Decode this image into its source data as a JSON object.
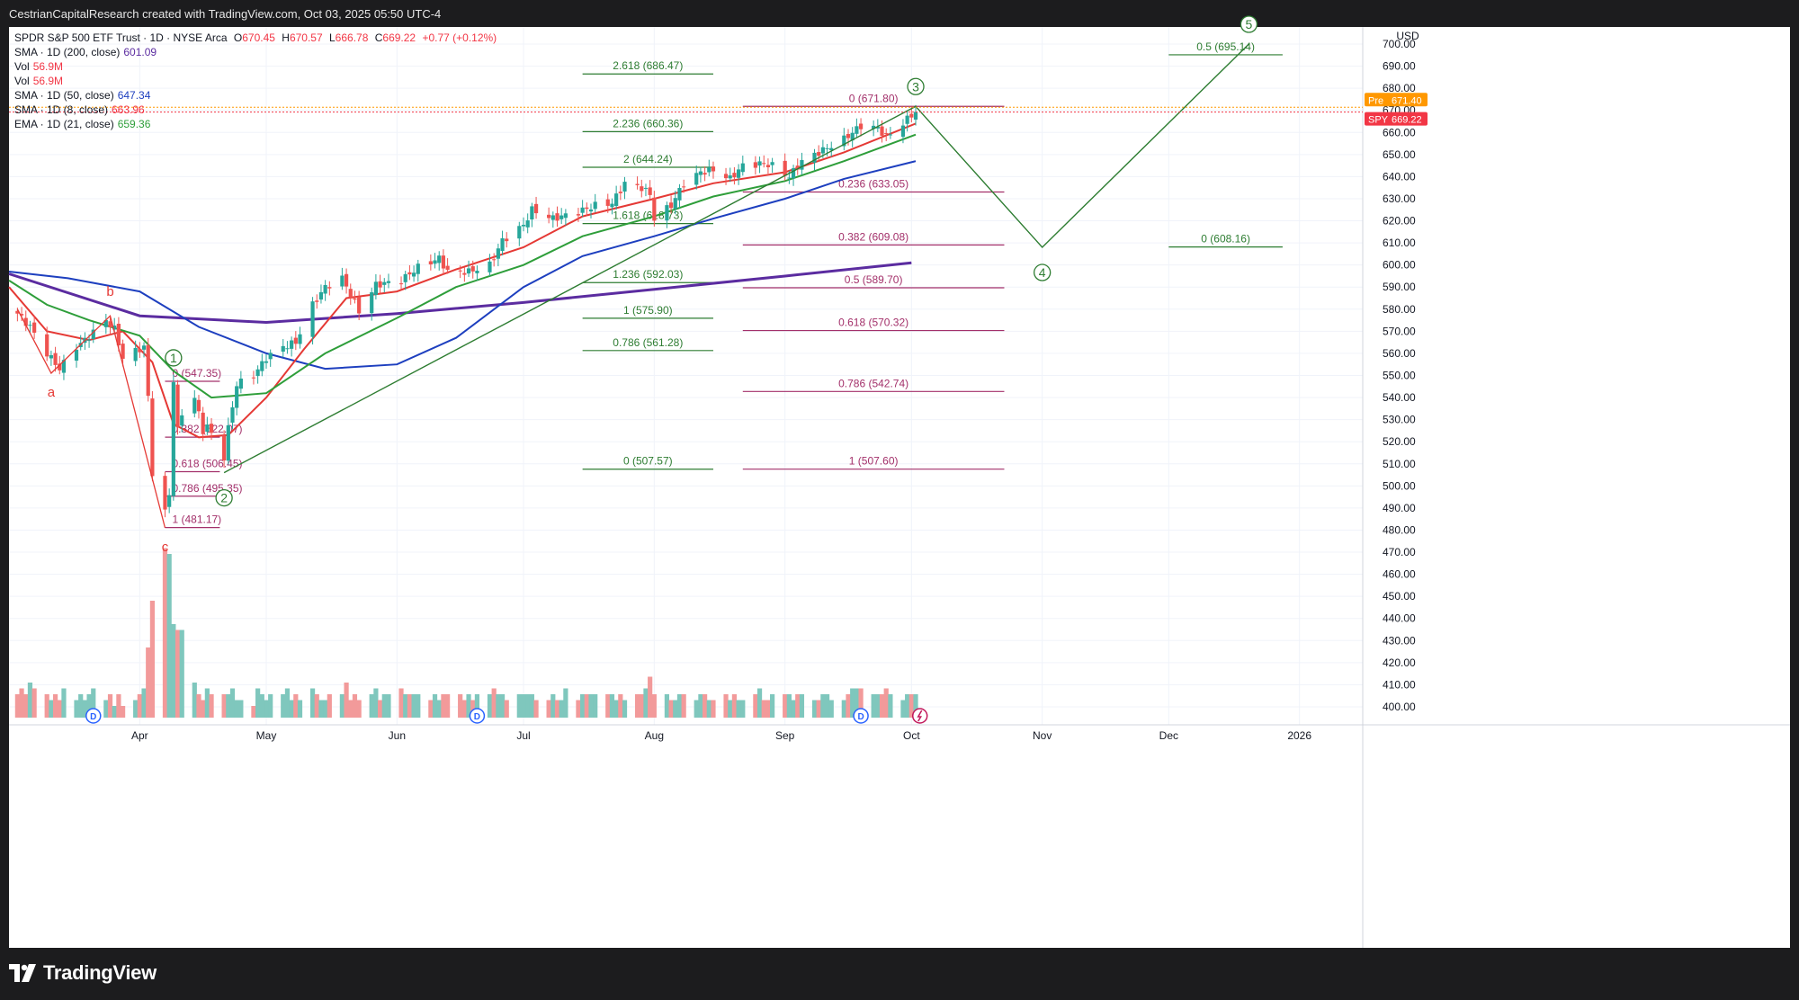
{
  "header": {
    "attribution": "CestrianCapitalResearch created with TradingView.com, Oct 03, 2025 05:50 UTC-4"
  },
  "legend": {
    "symbol_line": {
      "name": "SPDR S&P 500 ETF Trust · 1D · NYSE Arca",
      "o_label": "O",
      "o": "670.45",
      "h_label": "H",
      "h": "670.57",
      "l_label": "L",
      "l": "666.78",
      "c_label": "C",
      "c": "669.22",
      "change": "+0.77 (+0.12%)"
    },
    "indicators": [
      {
        "label": "SMA · 1D (200, close)",
        "value": "601.09",
        "color": "#5b2ca0"
      },
      {
        "label": "Vol",
        "value": "56.9M",
        "color": "#f23645"
      },
      {
        "label": "Vol",
        "value": "56.9M",
        "color": "#f23645"
      },
      {
        "label": "SMA · 1D (50, close)",
        "value": "647.34",
        "color": "#1d3fbf"
      },
      {
        "label": "SMA · 1D (8, close)",
        "value": "663.96",
        "color": "#f23645"
      },
      {
        "label": "EMA · 1D (21, close)",
        "value": "659.36",
        "color": "#2e9e3a"
      }
    ]
  },
  "price_axis": {
    "currency": "USD",
    "pre_label": "Pre",
    "pre_value": "671.40",
    "spy_label": "SPY",
    "spy_value": "669.22"
  },
  "chart_data": {
    "type": "candlestick",
    "symbol": "SPY",
    "timeframe": "1D",
    "y_range": [
      392,
      709
    ],
    "y_ticks": [
      400,
      410,
      420,
      430,
      440,
      450,
      460,
      470,
      480,
      490,
      500,
      510,
      520,
      530,
      540,
      550,
      560,
      570,
      580,
      590,
      600,
      610,
      620,
      630,
      640,
      650,
      660,
      670,
      680,
      690,
      700
    ],
    "x_range": [
      "2025-03-01",
      "2026-01-16"
    ],
    "x_ticks": [
      {
        "label": "Apr",
        "date": "2025-04-01"
      },
      {
        "label": "May",
        "date": "2025-05-01"
      },
      {
        "label": "Jun",
        "date": "2025-06-01"
      },
      {
        "label": "Jul",
        "date": "2025-07-01"
      },
      {
        "label": "Aug",
        "date": "2025-08-01"
      },
      {
        "label": "Sep",
        "date": "2025-09-01"
      },
      {
        "label": "Oct",
        "date": "2025-10-01"
      },
      {
        "label": "Nov",
        "date": "2025-11-01"
      },
      {
        "label": "Dec",
        "date": "2025-12-01"
      },
      {
        "label": "2026",
        "date": "2026-01-01"
      }
    ],
    "price_path": [
      [
        "2025-03-03",
        578
      ],
      [
        "2025-03-06",
        572
      ],
      [
        "2025-03-10",
        560
      ],
      [
        "2025-03-13",
        553
      ],
      [
        "2025-03-17",
        563
      ],
      [
        "2025-03-19",
        566
      ],
      [
        "2025-03-24",
        575
      ],
      [
        "2025-03-26",
        571
      ],
      [
        "2025-03-28",
        558
      ],
      [
        "2025-04-02",
        563
      ],
      [
        "2025-04-03",
        540
      ],
      [
        "2025-04-04",
        506
      ],
      [
        "2025-04-07",
        488
      ],
      [
        "2025-04-08",
        496
      ],
      [
        "2025-04-09",
        548
      ],
      [
        "2025-04-10",
        525
      ],
      [
        "2025-04-11",
        533
      ],
      [
        "2025-04-14",
        540
      ],
      [
        "2025-04-16",
        525
      ],
      [
        "2025-04-17",
        527
      ],
      [
        "2025-04-21",
        513
      ],
      [
        "2025-04-22",
        526
      ],
      [
        "2025-04-24",
        546
      ],
      [
        "2025-04-28",
        550
      ],
      [
        "2025-05-01",
        558
      ],
      [
        "2025-05-05",
        563
      ],
      [
        "2025-05-08",
        565
      ],
      [
        "2025-05-12",
        582
      ],
      [
        "2025-05-15",
        590
      ],
      [
        "2025-05-19",
        594
      ],
      [
        "2025-05-23",
        579
      ],
      [
        "2025-05-27",
        591
      ],
      [
        "2025-06-02",
        593
      ],
      [
        "2025-06-06",
        599
      ],
      [
        "2025-06-11",
        603
      ],
      [
        "2025-06-13",
        597
      ],
      [
        "2025-06-18",
        597
      ],
      [
        "2025-06-23",
        600
      ],
      [
        "2025-06-26",
        611
      ],
      [
        "2025-07-01",
        618
      ],
      [
        "2025-07-03",
        625
      ],
      [
        "2025-07-08",
        621
      ],
      [
        "2025-07-14",
        624
      ],
      [
        "2025-07-18",
        627
      ],
      [
        "2025-07-22",
        628
      ],
      [
        "2025-07-25",
        637
      ],
      [
        "2025-07-29",
        635
      ],
      [
        "2025-07-31",
        632
      ],
      [
        "2025-08-01",
        621
      ],
      [
        "2025-08-05",
        627
      ],
      [
        "2025-08-08",
        637
      ],
      [
        "2025-08-12",
        642
      ],
      [
        "2025-08-15",
        643
      ],
      [
        "2025-08-19",
        639
      ],
      [
        "2025-08-22",
        645
      ],
      [
        "2025-08-27",
        646
      ],
      [
        "2025-08-29",
        645
      ],
      [
        "2025-09-02",
        640
      ],
      [
        "2025-09-05",
        647
      ],
      [
        "2025-09-10",
        652
      ],
      [
        "2025-09-15",
        657
      ],
      [
        "2025-09-19",
        663
      ],
      [
        "2025-09-23",
        662
      ],
      [
        "2025-09-25",
        658
      ],
      [
        "2025-09-29",
        664
      ],
      [
        "2025-10-01",
        668
      ],
      [
        "2025-10-02",
        669.22
      ]
    ],
    "volume_relative": [
      4,
      5,
      4,
      6,
      5,
      4,
      3,
      4,
      3,
      5,
      3,
      4,
      3,
      4,
      5,
      3,
      4,
      2,
      4,
      2,
      3,
      4,
      5,
      12,
      20,
      29,
      28,
      16,
      15,
      15,
      6,
      4,
      3,
      5,
      4,
      4,
      4,
      5,
      3,
      3,
      2,
      5,
      4,
      3,
      4,
      4,
      5,
      3,
      4,
      3,
      5,
      4,
      3,
      3,
      4,
      4,
      6,
      3,
      4,
      3,
      4,
      5,
      3,
      4,
      4,
      5,
      4,
      4,
      4,
      4,
      3,
      4,
      3,
      4,
      4,
      4,
      3,
      4,
      3,
      4,
      4,
      5,
      4,
      4,
      3,
      4,
      4,
      4,
      4,
      3,
      3,
      4,
      3,
      3,
      5,
      3,
      4,
      4,
      4,
      4,
      4,
      4,
      3,
      4,
      3,
      4,
      4,
      5,
      7,
      4,
      4,
      3,
      3,
      4,
      4,
      3,
      4,
      4,
      3,
      3,
      4,
      3,
      4,
      3,
      3,
      4,
      5,
      3,
      3,
      4,
      4,
      4,
      3,
      4,
      4,
      3,
      3,
      4,
      4,
      3,
      3,
      4,
      5,
      5,
      5,
      4,
      4,
      4,
      5,
      4,
      3,
      4,
      4,
      4,
      3,
      4,
      4,
      3,
      4,
      4,
      5,
      5,
      4,
      5,
      4,
      3,
      4,
      3,
      4,
      4,
      2
    ],
    "moving_averages": [
      {
        "name": "SMA 200",
        "color": "#5b2ca0",
        "path": [
          [
            "2025-03-01",
            596
          ],
          [
            "2025-04-01",
            577
          ],
          [
            "2025-05-01",
            574
          ],
          [
            "2025-06-01",
            578
          ],
          [
            "2025-07-01",
            583
          ],
          [
            "2025-08-01",
            589
          ],
          [
            "2025-09-01",
            595
          ],
          [
            "2025-10-01",
            601
          ]
        ]
      },
      {
        "name": "SMA 50",
        "color": "#1d3fbf",
        "path": [
          [
            "2025-03-01",
            597
          ],
          [
            "2025-03-15",
            594
          ],
          [
            "2025-04-01",
            588
          ],
          [
            "2025-04-15",
            572
          ],
          [
            "2025-05-01",
            560
          ],
          [
            "2025-05-15",
            553
          ],
          [
            "2025-06-01",
            555
          ],
          [
            "2025-06-15",
            567
          ],
          [
            "2025-07-01",
            590
          ],
          [
            "2025-07-15",
            604
          ],
          [
            "2025-08-01",
            613
          ],
          [
            "2025-08-15",
            621
          ],
          [
            "2025-09-01",
            630
          ],
          [
            "2025-09-15",
            639
          ],
          [
            "2025-10-02",
            647
          ]
        ]
      },
      {
        "name": "SMA 8",
        "color": "#e53935",
        "path": [
          [
            "2025-03-01",
            590
          ],
          [
            "2025-03-10",
            570
          ],
          [
            "2025-03-20",
            566
          ],
          [
            "2025-03-28",
            570
          ],
          [
            "2025-04-04",
            556
          ],
          [
            "2025-04-09",
            528
          ],
          [
            "2025-04-15",
            522
          ],
          [
            "2025-04-22",
            523
          ],
          [
            "2025-05-01",
            540
          ],
          [
            "2025-05-10",
            562
          ],
          [
            "2025-05-20",
            585
          ],
          [
            "2025-06-01",
            588
          ],
          [
            "2025-06-15",
            598
          ],
          [
            "2025-07-01",
            608
          ],
          [
            "2025-07-15",
            622
          ],
          [
            "2025-08-01",
            630
          ],
          [
            "2025-08-15",
            637
          ],
          [
            "2025-09-01",
            642
          ],
          [
            "2025-09-15",
            651
          ],
          [
            "2025-10-02",
            664
          ]
        ]
      },
      {
        "name": "EMA 21",
        "color": "#2e9e3a",
        "path": [
          [
            "2025-03-01",
            593
          ],
          [
            "2025-03-10",
            582
          ],
          [
            "2025-03-20",
            575
          ],
          [
            "2025-04-01",
            568
          ],
          [
            "2025-04-09",
            552
          ],
          [
            "2025-04-18",
            540
          ],
          [
            "2025-05-01",
            542
          ],
          [
            "2025-05-15",
            560
          ],
          [
            "2025-06-01",
            576
          ],
          [
            "2025-06-15",
            590
          ],
          [
            "2025-07-01",
            600
          ],
          [
            "2025-07-15",
            613
          ],
          [
            "2025-08-01",
            622
          ],
          [
            "2025-08-15",
            631
          ],
          [
            "2025-09-01",
            638
          ],
          [
            "2025-09-15",
            647
          ],
          [
            "2025-10-02",
            659
          ]
        ]
      }
    ],
    "wave_labels": [
      {
        "label": "a",
        "date": "2025-03-11",
        "price": 551,
        "circled": false,
        "color": "#e53935"
      },
      {
        "label": "b",
        "date": "2025-03-25",
        "price": 577,
        "circled": false,
        "color": "#e53935"
      },
      {
        "label": "c",
        "date": "2025-04-07",
        "price": 481,
        "circled": false,
        "color": "#e53935"
      },
      {
        "label": "1",
        "date": "2025-04-09",
        "price": 549,
        "circled": true,
        "color": "#2e7d32"
      },
      {
        "label": "2",
        "date": "2025-04-21",
        "price": 506,
        "circled": true,
        "color": "#2e7d32"
      },
      {
        "label": "3",
        "date": "2025-10-02",
        "price": 671.8,
        "circled": true,
        "color": "#2e7d32"
      },
      {
        "label": "4",
        "date": "2025-11-01",
        "price": 608,
        "circled": true,
        "color": "#2e7d32"
      },
      {
        "label": "5",
        "date": "2025-12-20",
        "price": 700,
        "circled": true,
        "color": "#2e7d32"
      }
    ],
    "abc_path": [
      [
        "2025-03-03",
        580
      ],
      [
        "2025-03-11",
        551
      ],
      [
        "2025-03-25",
        577
      ],
      [
        "2025-04-07",
        481
      ]
    ],
    "projection_path": [
      [
        "2025-04-21",
        506
      ],
      [
        "2025-10-02",
        671.8
      ],
      [
        "2025-11-01",
        608
      ],
      [
        "2025-12-20",
        700
      ]
    ],
    "extension_series": [
      {
        "color": "#2e7d32",
        "x_start": "2025-07-15",
        "x_end": "2025-08-15",
        "label_align": "center",
        "levels": [
          {
            "label": "2.618 (686.47)",
            "price": 686.47
          },
          {
            "label": "2.236 (660.36)",
            "price": 660.36
          },
          {
            "label": "2 (644.24)",
            "price": 644.24
          },
          {
            "label": "1.618 (618.73)",
            "price": 618.73
          },
          {
            "label": "1.236 (592.03)",
            "price": 592.03
          },
          {
            "label": "1 (575.90)",
            "price": 575.9
          },
          {
            "label": "0.786 (561.28)",
            "price": 561.28
          },
          {
            "label": "0 (507.57)",
            "price": 507.57
          }
        ]
      },
      {
        "color": "#a3306a",
        "x_start": "2025-08-22",
        "x_end": "2025-10-23",
        "label_align": "center",
        "levels": [
          {
            "label": "0 (671.80)",
            "price": 671.8
          },
          {
            "label": "0.236 (633.05)",
            "price": 633.05
          },
          {
            "label": "0.382 (609.08)",
            "price": 609.08
          },
          {
            "label": "0.5 (589.70)",
            "price": 589.7
          },
          {
            "label": "0.618 (570.32)",
            "price": 570.32
          },
          {
            "label": "0.786 (542.74)",
            "price": 542.74
          },
          {
            "label": "1 (507.60)",
            "price": 507.6
          }
        ]
      },
      {
        "color": "#a3306a",
        "x_start": "2025-04-07",
        "x_end": "2025-04-20",
        "label_align": "left",
        "levels": [
          {
            "label": "0 (547.35)",
            "price": 547.35
          },
          {
            "label": "0.382 (522.07)",
            "price": 522.07
          },
          {
            "label": "0.618 (506.45)",
            "price": 506.45
          },
          {
            "label": "0.786 (495.35)",
            "price": 495.35
          },
          {
            "label": "1 (481.17)",
            "price": 481.17
          }
        ]
      },
      {
        "color": "#2e7d32",
        "x_start": "2025-12-01",
        "x_end": "2025-12-28",
        "label_align": "center",
        "levels": [
          {
            "label": "0.5 (695.14)",
            "price": 695.14
          },
          {
            "label": "0 (608.16)",
            "price": 608.16
          }
        ]
      }
    ],
    "dividend_markers": [
      {
        "label": "D",
        "date": "2025-03-21"
      },
      {
        "label": "D",
        "date": "2025-06-20"
      },
      {
        "label": "D",
        "date": "2025-09-19"
      }
    ],
    "earnings_marker": {
      "date": "2025-10-03"
    }
  },
  "footer": {
    "brand": "TradingView"
  }
}
